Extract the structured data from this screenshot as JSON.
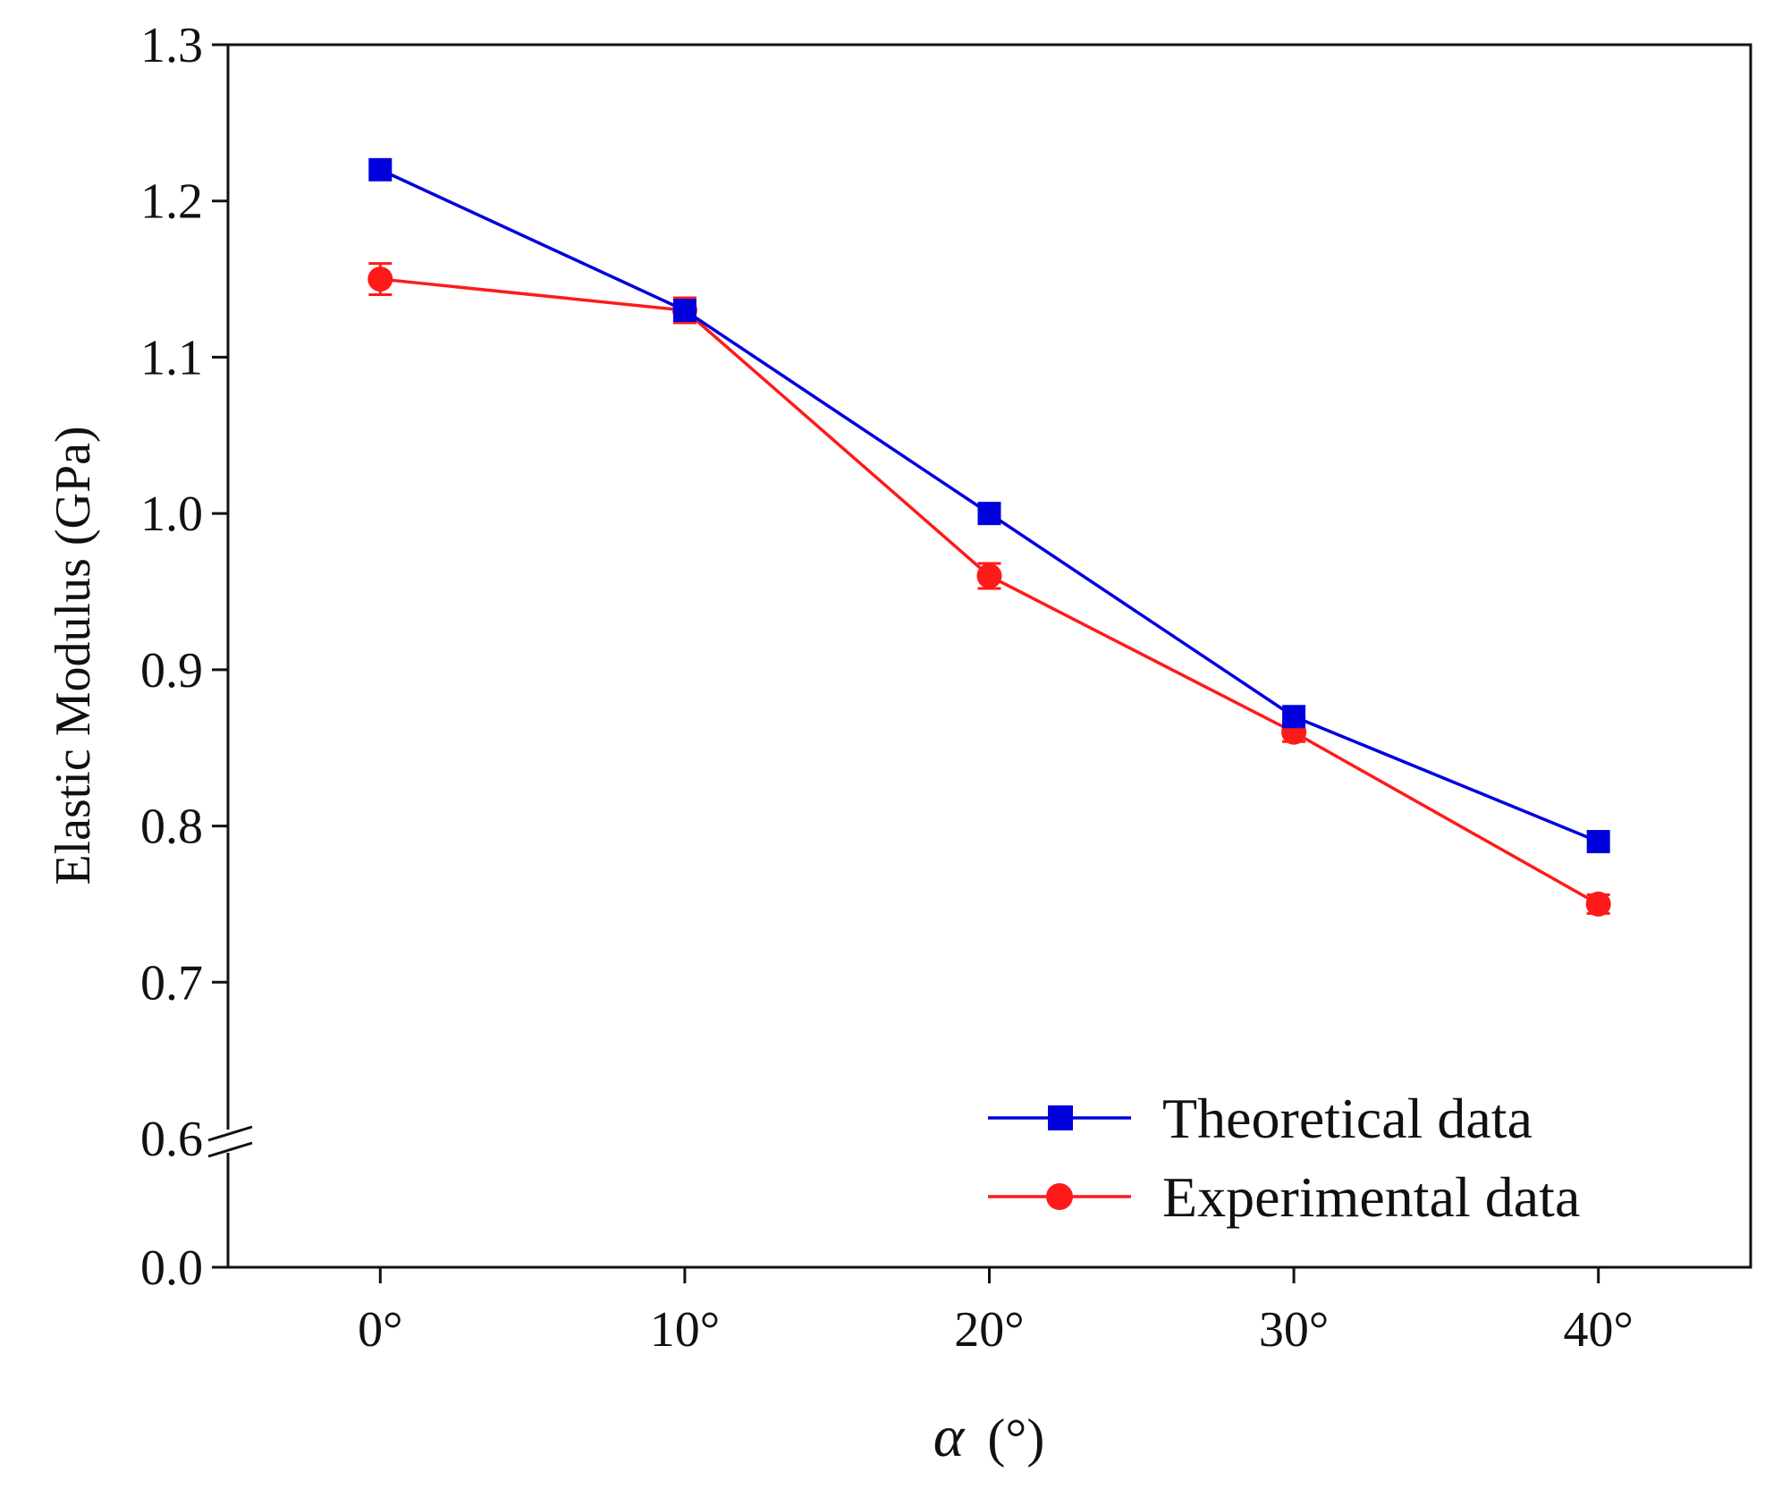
{
  "chart_data": {
    "type": "line",
    "title": "",
    "xlabel_symbol": "α",
    "xlabel_unit": "(°)",
    "ylabel": "Elastic Modulus (GPa)",
    "categories": [
      "0°",
      "10°",
      "20°",
      "30°",
      "40°"
    ],
    "x": [
      0,
      10,
      20,
      30,
      40
    ],
    "xlim": [
      -5,
      45
    ],
    "ylim": [
      0.6,
      1.3
    ],
    "yticks": [
      "1.3",
      "1.2",
      "1.1",
      "1.0",
      "0.9",
      "0.8",
      "0.7",
      "0.6"
    ],
    "ytick_values": [
      1.3,
      1.2,
      1.1,
      1.0,
      0.9,
      0.8,
      0.7,
      0.6
    ],
    "axis_break": {
      "from": 0.0,
      "to": 0.6,
      "lower_tick_label": "0.0",
      "lower_tick_value": 0.0
    },
    "legend_position": "lower-right",
    "series": [
      {
        "name": "Theoretical data",
        "marker": "square",
        "color": "#0000dd",
        "values": [
          1.22,
          1.13,
          1.0,
          0.87,
          0.79
        ]
      },
      {
        "name": "Experimental data",
        "marker": "circle",
        "color": "#ff1a1a",
        "values": [
          1.15,
          1.13,
          0.96,
          0.86,
          0.75
        ],
        "errors": [
          0.01,
          0.008,
          0.008,
          0.006,
          0.006
        ]
      }
    ]
  }
}
